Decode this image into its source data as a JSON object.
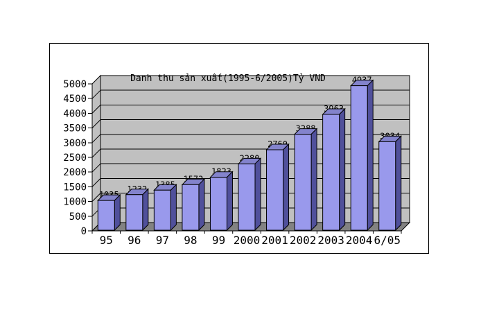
{
  "chart_data": {
    "type": "bar",
    "style": "3d-excel",
    "title": "Danh thu sản xuất(1995-6/2005)Tỷ VND",
    "categories": [
      "95",
      "96",
      "97",
      "98",
      "99",
      "2000",
      "2001",
      "2002",
      "2003",
      "2004",
      "6/05"
    ],
    "values": [
      1035,
      1232,
      1385,
      1573,
      1823,
      2280,
      2760,
      3288,
      3963,
      4937,
      3034
    ],
    "value_labels": [
      "1035",
      "1232",
      "1385",
      "1573",
      "1823",
      "2280",
      "2760",
      "3288",
      "3963",
      "4937",
      "3034"
    ],
    "ylabel": "",
    "xlabel": "",
    "ylim": [
      0,
      5000
    ],
    "y_ticks": [
      0,
      500,
      1000,
      1500,
      2000,
      2500,
      3000,
      3500,
      4000,
      4500,
      5000
    ],
    "grid": true,
    "legend": "none",
    "colors": {
      "bar_front": "#9999EC",
      "bar_top": "#8383CC",
      "bar_side": "#50509B",
      "wall": "#C0C0C0",
      "floor": "#828282",
      "outline": "#000000",
      "text": "#000000",
      "frame_bg": "#FFFFFF"
    }
  }
}
